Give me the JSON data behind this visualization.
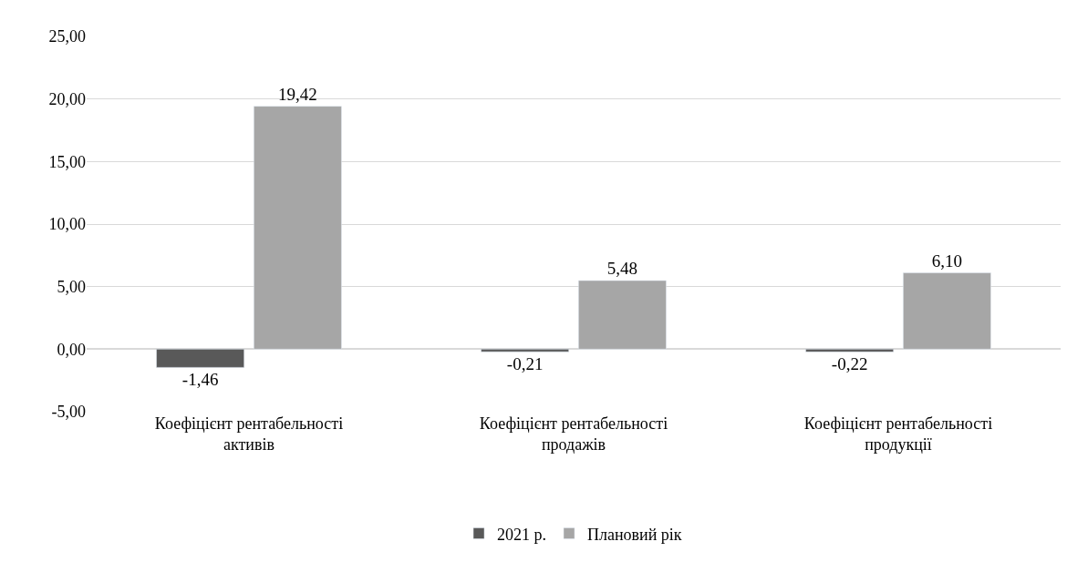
{
  "chart_data": {
    "type": "bar",
    "categories": [
      "Коефіцієнт рентабельності активів",
      "Коефіцієнт рентабельності продажів",
      "Коефіцієнт рентабельності продукції"
    ],
    "series": [
      {
        "name": "2021 р.",
        "color": "#595959",
        "values": [
          -1.46,
          -0.21,
          -0.22
        ],
        "value_labels": [
          "-1,46",
          "-0,21",
          "-0,22"
        ]
      },
      {
        "name": "Плановий рік",
        "color": "#a6a6a6",
        "values": [
          19.42,
          5.48,
          6.1
        ],
        "value_labels": [
          "19,42",
          "5,48",
          "6,10"
        ]
      }
    ],
    "ylim": [
      -5,
      25
    ],
    "yticks": [
      {
        "value": -5,
        "label": "-5,00"
      },
      {
        "value": 0,
        "label": "0,00"
      },
      {
        "value": 5,
        "label": "5,00"
      },
      {
        "value": 10,
        "label": "10,00"
      },
      {
        "value": 15,
        "label": "15,00"
      },
      {
        "value": 20,
        "label": "20,00"
      },
      {
        "value": 25,
        "label": "25,00"
      }
    ],
    "grid": "y",
    "legend": "bottom"
  }
}
